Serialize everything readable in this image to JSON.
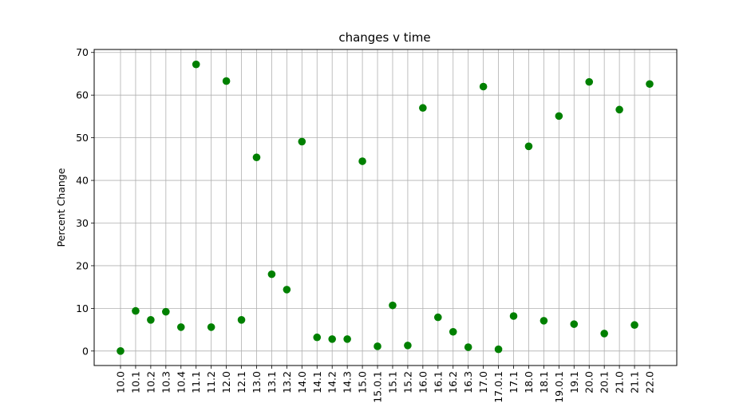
{
  "chart_data": {
    "type": "scatter",
    "title": "changes v time",
    "xlabel": "",
    "ylabel": "Percent Change",
    "categories": [
      "10.0",
      "10.1",
      "10.2",
      "10.3",
      "10.4",
      "11.1",
      "11.2",
      "12.0",
      "12.1",
      "13.0",
      "13.1",
      "13.2",
      "14.0",
      "14.1",
      "14.2",
      "14.3",
      "15.0",
      "15.0.1",
      "15.1",
      "15.2",
      "16.0",
      "16.1",
      "16.2",
      "16.3",
      "17.0",
      "17.0.1",
      "17.1",
      "18.0",
      "18.1",
      "19.0.1",
      "19.1",
      "20.0",
      "20.1",
      "21.0",
      "21.1",
      "22.0"
    ],
    "values": [
      0.0,
      9.4,
      7.3,
      9.2,
      5.6,
      67.2,
      5.6,
      63.3,
      7.3,
      45.4,
      18.0,
      14.4,
      49.1,
      3.2,
      2.8,
      2.8,
      44.5,
      1.1,
      10.7,
      1.3,
      57.0,
      7.9,
      4.5,
      0.9,
      62.0,
      0.4,
      8.2,
      48.0,
      7.1,
      55.1,
      6.3,
      63.1,
      4.1,
      56.6,
      6.1,
      62.6
    ],
    "ylim": [
      -3.4,
      70.7
    ],
    "yticks": [
      0,
      10,
      20,
      30,
      40,
      50,
      60,
      70
    ],
    "grid": true,
    "marker_color": "#008000",
    "marker": "circle"
  }
}
